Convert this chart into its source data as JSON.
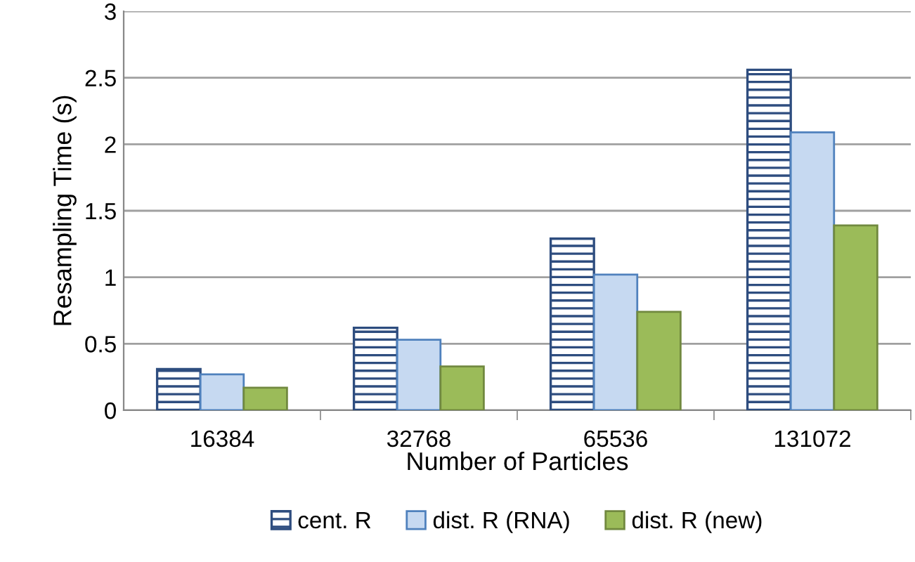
{
  "chart_data": {
    "type": "bar",
    "xlabel": "Number of Particles",
    "ylabel": "Resampling Time (s)",
    "categories": [
      "16384",
      "32768",
      "65536",
      "131072"
    ],
    "series": [
      {
        "name": "cent. R",
        "color": "#2e4d7f",
        "values": [
          0.31,
          0.62,
          1.29,
          2.56
        ]
      },
      {
        "name": "dist. R (RNA)",
        "color": "#c6d9f1",
        "values": [
          0.27,
          0.53,
          1.02,
          2.09
        ]
      },
      {
        "name": "dist. R (new)",
        "color": "#9bbb59",
        "values": [
          0.17,
          0.33,
          0.74,
          1.39
        ]
      }
    ],
    "ylim": [
      0,
      3
    ],
    "yticks": [
      0,
      0.5,
      1,
      1.5,
      2,
      2.5,
      3
    ],
    "grid": "y",
    "legend": "bottom"
  }
}
